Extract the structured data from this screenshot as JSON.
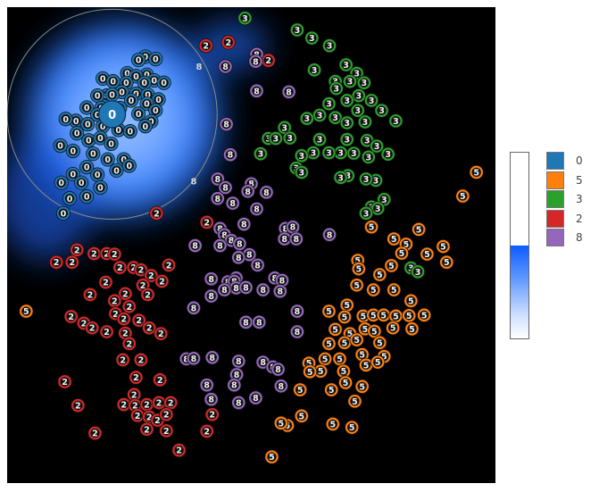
{
  "chart_data": {
    "type": "scatter",
    "title": "",
    "xlabel": "",
    "ylabel": "",
    "xlim": [
      0,
      100
    ],
    "ylim": [
      0,
      100
    ],
    "grid": false,
    "legend_position": "right",
    "background": "#000000",
    "point_radius_data": 1.4,
    "selection": {
      "center": [
        21.5,
        77.5
      ],
      "radius_data": 21.5,
      "center_label": "0",
      "ring_labels": [
        {
          "text": "8",
          "x": 39.3,
          "y": 87.6
        },
        {
          "text": "8",
          "x": 38.2,
          "y": 63.5
        }
      ]
    },
    "colorbar": {
      "fill_fraction": 0.5,
      "color": "#0b5cff"
    },
    "series": [
      {
        "name": "0",
        "label": "0",
        "color": "#1f77b4",
        "points": [
          [
            28.3,
            89.6
          ],
          [
            30.4,
            89.1
          ],
          [
            26.9,
            88.9
          ],
          [
            24.6,
            86.1
          ],
          [
            28.6,
            85.8
          ],
          [
            26.4,
            85.5
          ],
          [
            30.1,
            84.6
          ],
          [
            28.1,
            84.1
          ],
          [
            32.1,
            84.1
          ],
          [
            19.6,
            85.0
          ],
          [
            24.4,
            84.1
          ],
          [
            21.7,
            84.4
          ],
          [
            20.4,
            81.4
          ],
          [
            23.5,
            82.2
          ],
          [
            26.4,
            81.8
          ],
          [
            28.8,
            81.6
          ],
          [
            31.0,
            80.6
          ],
          [
            18.5,
            81.4
          ],
          [
            21.5,
            81.6
          ],
          [
            25.4,
            80.4
          ],
          [
            28.6,
            79.7
          ],
          [
            30.4,
            78.3
          ],
          [
            16.3,
            78.9
          ],
          [
            19.3,
            78.8
          ],
          [
            23.1,
            78.8
          ],
          [
            26.9,
            77.6
          ],
          [
            21.7,
            77.5
          ],
          [
            18.5,
            77.4
          ],
          [
            29.5,
            76.0
          ],
          [
            14.1,
            76.1
          ],
          [
            16.5,
            75.4
          ],
          [
            19.6,
            75.0
          ],
          [
            22.8,
            74.2
          ],
          [
            25.2,
            73.9
          ],
          [
            28.3,
            75.0
          ],
          [
            14.3,
            73.5
          ],
          [
            12.0,
            76.5
          ],
          [
            16.7,
            72.0
          ],
          [
            19.1,
            72.5
          ],
          [
            21.3,
            71.3
          ],
          [
            10.9,
            70.9
          ],
          [
            13.5,
            69.8
          ],
          [
            17.6,
            69.2
          ],
          [
            20.6,
            68.0
          ],
          [
            23.9,
            68.0
          ],
          [
            25.0,
            66.7
          ],
          [
            16.3,
            66.4
          ],
          [
            13.5,
            64.9
          ],
          [
            18.5,
            64.8
          ],
          [
            22.4,
            65.7
          ],
          [
            11.1,
            63.1
          ],
          [
            15.2,
            63.1
          ],
          [
            19.1,
            62.1
          ],
          [
            12.8,
            59.8
          ],
          [
            16.3,
            60.2
          ],
          [
            11.5,
            56.7
          ]
        ]
      },
      {
        "name": "5",
        "label": "5",
        "color": "#ff7f0e",
        "points": [
          [
            96.1,
            65.3
          ],
          [
            93.3,
            60.3
          ],
          [
            74.6,
            53.8
          ],
          [
            84.3,
            53.3
          ],
          [
            79.2,
            51.3
          ],
          [
            81.7,
            50.2
          ],
          [
            89.3,
            49.7
          ],
          [
            86.0,
            48.1
          ],
          [
            71.8,
            46.8
          ],
          [
            80.8,
            48.3
          ],
          [
            72.0,
            45.0
          ],
          [
            78.7,
            45.7
          ],
          [
            76.3,
            43.8
          ],
          [
            90.0,
            46.4
          ],
          [
            71.6,
            41.6
          ],
          [
            75.0,
            40.6
          ],
          [
            79.2,
            40.6
          ],
          [
            82.7,
            38.3
          ],
          [
            69.6,
            37.4
          ],
          [
            65.9,
            36.1
          ],
          [
            69.1,
            34.9
          ],
          [
            72.9,
            35.1
          ],
          [
            75.0,
            35.3
          ],
          [
            77.1,
            35.3
          ],
          [
            79.6,
            35.1
          ],
          [
            82.3,
            35.2
          ],
          [
            85.4,
            35.3
          ],
          [
            67.2,
            32.3
          ],
          [
            70.2,
            31.4
          ],
          [
            73.3,
            32.4
          ],
          [
            75.2,
            31.9
          ],
          [
            79.0,
            32.6
          ],
          [
            82.9,
            32.4
          ],
          [
            65.9,
            29.3
          ],
          [
            69.1,
            29.5
          ],
          [
            71.6,
            30.1
          ],
          [
            76.3,
            29.5
          ],
          [
            65.1,
            26.1
          ],
          [
            68.1,
            26.1
          ],
          [
            72.7,
            27.0
          ],
          [
            77.2,
            26.6
          ],
          [
            61.8,
            25.2
          ],
          [
            64.2,
            23.5
          ],
          [
            68.9,
            23.5
          ],
          [
            73.5,
            24.8
          ],
          [
            75.9,
            25.4
          ],
          [
            69.3,
            21.1
          ],
          [
            72.7,
            20.3
          ],
          [
            62.0,
            23.4
          ],
          [
            60.0,
            19.6
          ],
          [
            66.4,
            19.6
          ],
          [
            71.2,
            17.2
          ],
          [
            60.3,
            14.1
          ],
          [
            57.4,
            12.1
          ],
          [
            56.1,
            12.6
          ],
          [
            66.7,
            12.4
          ],
          [
            70.6,
            11.7
          ],
          [
            54.2,
            5.5
          ],
          [
            3.9,
            36.1
          ]
        ]
      },
      {
        "name": "3",
        "label": "3",
        "color": "#2ca02c",
        "points": [
          [
            59.4,
            95.2
          ],
          [
            62.4,
            93.5
          ],
          [
            66.0,
            91.9
          ],
          [
            69.4,
            87.9
          ],
          [
            62.9,
            86.8
          ],
          [
            71.6,
            86.1
          ],
          [
            67.2,
            84.4
          ],
          [
            70.2,
            84.4
          ],
          [
            73.1,
            84.1
          ],
          [
            67.4,
            82.9
          ],
          [
            72.0,
            81.4
          ],
          [
            74.6,
            80.4
          ],
          [
            69.6,
            80.4
          ],
          [
            65.9,
            79.7
          ],
          [
            71.8,
            78.3
          ],
          [
            76.7,
            78.3
          ],
          [
            64.0,
            77.3
          ],
          [
            61.4,
            76.6
          ],
          [
            67.2,
            76.8
          ],
          [
            73.3,
            75.9
          ],
          [
            69.6,
            75.7
          ],
          [
            79.6,
            76.1
          ],
          [
            56.8,
            74.7
          ],
          [
            53.5,
            72.4
          ],
          [
            55.0,
            72.4
          ],
          [
            57.9,
            72.5
          ],
          [
            64.0,
            72.2
          ],
          [
            69.6,
            72.2
          ],
          [
            73.7,
            72.0
          ],
          [
            74.0,
            68.5
          ],
          [
            71.0,
            69.3
          ],
          [
            68.3,
            69.4
          ],
          [
            65.9,
            69.4
          ],
          [
            62.7,
            69.4
          ],
          [
            60.3,
            68.8
          ],
          [
            51.9,
            69.2
          ],
          [
            78.0,
            69.1
          ],
          [
            75.7,
            70.8
          ],
          [
            59.2,
            66.2
          ],
          [
            60.3,
            65.3
          ],
          [
            69.8,
            64.6
          ],
          [
            75.5,
            63.6
          ],
          [
            68.3,
            64.2
          ],
          [
            73.5,
            63.9
          ],
          [
            77.2,
            59.6
          ],
          [
            74.6,
            58.0
          ],
          [
            75.9,
            57.7
          ],
          [
            73.5,
            56.7
          ],
          [
            82.7,
            45.2
          ],
          [
            84.1,
            44.4
          ],
          [
            48.7,
            97.7
          ]
        ]
      },
      {
        "name": "2",
        "label": "2",
        "color": "#d62728",
        "points": [
          [
            40.7,
            91.9
          ],
          [
            45.3,
            92.6
          ],
          [
            53.5,
            88.8
          ],
          [
            30.6,
            56.7
          ],
          [
            40.9,
            54.8
          ],
          [
            14.3,
            49.0
          ],
          [
            17.8,
            48.2
          ],
          [
            20.4,
            48.2
          ],
          [
            22.0,
            48.1
          ],
          [
            10.1,
            46.4
          ],
          [
            13.3,
            46.4
          ],
          [
            23.1,
            45.3
          ],
          [
            25.9,
            45.3
          ],
          [
            33.1,
            45.8
          ],
          [
            27.4,
            44.8
          ],
          [
            29.5,
            43.6
          ],
          [
            31.7,
            42.4
          ],
          [
            27.8,
            41.6
          ],
          [
            20.2,
            42.2
          ],
          [
            24.2,
            39.8
          ],
          [
            28.8,
            39.6
          ],
          [
            17.0,
            39.6
          ],
          [
            22.0,
            38.3
          ],
          [
            25.0,
            37.1
          ],
          [
            13.1,
            35.0
          ],
          [
            15.7,
            33.6
          ],
          [
            22.2,
            35.6
          ],
          [
            23.9,
            34.5
          ],
          [
            27.0,
            34.2
          ],
          [
            17.4,
            32.6
          ],
          [
            20.4,
            31.8
          ],
          [
            24.2,
            31.5
          ],
          [
            29.1,
            32.6
          ],
          [
            31.5,
            31.4
          ],
          [
            25.0,
            29.3
          ],
          [
            23.7,
            25.9
          ],
          [
            27.4,
            25.9
          ],
          [
            11.8,
            21.3
          ],
          [
            26.4,
            22.2
          ],
          [
            31.3,
            21.7
          ],
          [
            26.0,
            18.6
          ],
          [
            14.5,
            16.3
          ],
          [
            23.9,
            16.5
          ],
          [
            26.2,
            16.3
          ],
          [
            28.6,
            16.5
          ],
          [
            31.1,
            16.9
          ],
          [
            33.5,
            16.9
          ],
          [
            26.7,
            14.2
          ],
          [
            29.1,
            13.9
          ],
          [
            30.8,
            13.2
          ],
          [
            32.6,
            14.4
          ],
          [
            42.0,
            14.4
          ],
          [
            28.6,
            11.3
          ],
          [
            32.6,
            11.0
          ],
          [
            18.0,
            10.5
          ],
          [
            40.9,
            10.9
          ],
          [
            35.2,
            6.9
          ]
        ]
      },
      {
        "name": "8",
        "label": "8",
        "color": "#9467bd",
        "points": [
          [
            51.1,
            90.1
          ],
          [
            44.7,
            87.5
          ],
          [
            50.9,
            88.6
          ],
          [
            51.1,
            82.4
          ],
          [
            57.7,
            82.2
          ],
          [
            44.9,
            75.4
          ],
          [
            45.7,
            69.0
          ],
          [
            43.1,
            63.9
          ],
          [
            50.0,
            62.9
          ],
          [
            44.7,
            62.1
          ],
          [
            43.1,
            59.8
          ],
          [
            46.2,
            58.8
          ],
          [
            49.3,
            61.3
          ],
          [
            53.1,
            61.1
          ],
          [
            51.1,
            57.6
          ],
          [
            43.6,
            53.5
          ],
          [
            44.5,
            52.2
          ],
          [
            48.5,
            54.4
          ],
          [
            45.9,
            51.0
          ],
          [
            57.0,
            53.5
          ],
          [
            58.5,
            53.8
          ],
          [
            66.0,
            52.2
          ],
          [
            56.8,
            51.3
          ],
          [
            59.2,
            51.3
          ],
          [
            47.6,
            50.3
          ],
          [
            38.5,
            49.9
          ],
          [
            43.6,
            49.9
          ],
          [
            49.6,
            48.0
          ],
          [
            47.4,
            47.4
          ],
          [
            46.9,
            43.1
          ],
          [
            51.3,
            45.8
          ],
          [
            45.2,
            42.3
          ],
          [
            46.5,
            42.4
          ],
          [
            41.8,
            42.9
          ],
          [
            46.9,
            41.0
          ],
          [
            54.8,
            43.1
          ],
          [
            56.3,
            42.6
          ],
          [
            41.8,
            39.3
          ],
          [
            44.5,
            40.6
          ],
          [
            48.9,
            41.1
          ],
          [
            52.4,
            40.6
          ],
          [
            55.9,
            40.3
          ],
          [
            38.2,
            36.8
          ],
          [
            59.4,
            36.1
          ],
          [
            48.9,
            33.8
          ],
          [
            51.6,
            33.8
          ],
          [
            59.4,
            31.8
          ],
          [
            36.7,
            26.1
          ],
          [
            42.0,
            26.4
          ],
          [
            38.2,
            26.2
          ],
          [
            47.4,
            25.6
          ],
          [
            52.4,
            25.4
          ],
          [
            54.4,
            24.4
          ],
          [
            55.5,
            23.9
          ],
          [
            47.0,
            22.8
          ],
          [
            56.1,
            20.4
          ],
          [
            40.9,
            20.6
          ],
          [
            46.5,
            20.6
          ],
          [
            50.9,
            17.9
          ],
          [
            41.8,
            17.6
          ],
          [
            47.4,
            16.9
          ]
        ]
      }
    ]
  }
}
